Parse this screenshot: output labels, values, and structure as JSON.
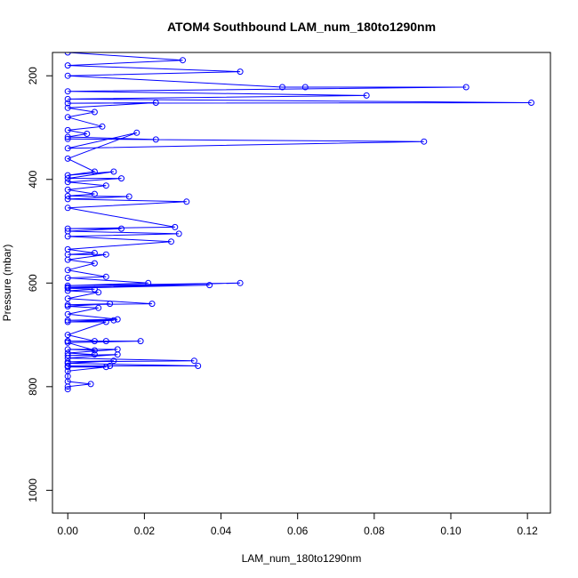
{
  "chart_data": {
    "type": "line",
    "title": "ATOM4 Southbound LAM_num_180to1290nm",
    "xlabel": "LAM_num_180to1290nm",
    "ylabel": "Pressure (mbar)",
    "xlim": [
      -0.004,
      0.126
    ],
    "ylim": [
      1044,
      155
    ],
    "y_inverted": true,
    "x_ticks": [
      0.0,
      0.02,
      0.04,
      0.06,
      0.08,
      0.1,
      0.12
    ],
    "x_tick_labels": [
      "0.00",
      "0.02",
      "0.04",
      "0.06",
      "0.08",
      "0.10",
      "0.12"
    ],
    "y_ticks": [
      200,
      400,
      600,
      800,
      1000
    ],
    "y_tick_labels": [
      "200",
      "400",
      "600",
      "800",
      "1000"
    ],
    "grid": false,
    "series_color": "#0000ff",
    "series": [
      {
        "points": [
          [
            0.0,
            155
          ],
          [
            0.03,
            170
          ],
          [
            0.0,
            180
          ],
          [
            0.045,
            192
          ],
          [
            0.0,
            200
          ],
          [
            0.056,
            222
          ],
          [
            0.062,
            222
          ],
          [
            0.104,
            222
          ],
          [
            0.0,
            230
          ],
          [
            0.078,
            238
          ],
          [
            0.0,
            245
          ],
          [
            0.121,
            252
          ],
          [
            0.0,
            253
          ],
          [
            0.023,
            252
          ],
          [
            0.0,
            262
          ],
          [
            0.007,
            270
          ],
          [
            0.0,
            280
          ],
          [
            0.009,
            298
          ],
          [
            0.0,
            305
          ],
          [
            0.005,
            312
          ],
          [
            0.0,
            318
          ],
          [
            0.023,
            323
          ],
          [
            0.0,
            322
          ],
          [
            0.093,
            327
          ],
          [
            0.0,
            340
          ],
          [
            0.018,
            310
          ],
          [
            0.0,
            360
          ],
          [
            0.007,
            385
          ],
          [
            0.0,
            392
          ],
          [
            0.012,
            385
          ],
          [
            0.0,
            398
          ],
          [
            0.014,
            398
          ],
          [
            0.0,
            405
          ],
          [
            0.01,
            412
          ],
          [
            0.0,
            420
          ],
          [
            0.007,
            428
          ],
          [
            0.0,
            432
          ],
          [
            0.016,
            433
          ],
          [
            0.0,
            438
          ],
          [
            0.031,
            443
          ],
          [
            0.0,
            455
          ],
          [
            0.028,
            492
          ],
          [
            0.0,
            495
          ],
          [
            0.014,
            495
          ],
          [
            0.0,
            500
          ],
          [
            0.029,
            505
          ],
          [
            0.0,
            510
          ],
          [
            0.027,
            520
          ],
          [
            0.0,
            535
          ],
          [
            0.007,
            542
          ],
          [
            0.0,
            545
          ],
          [
            0.01,
            545
          ],
          [
            0.0,
            555
          ],
          [
            0.007,
            562
          ],
          [
            0.0,
            575
          ],
          [
            0.01,
            588
          ],
          [
            0.0,
            590
          ],
          [
            0.021,
            600
          ],
          [
            0.0,
            605
          ],
          [
            0.045,
            600
          ],
          [
            0.0,
            608
          ],
          [
            0.037,
            604
          ],
          [
            0.0,
            610
          ],
          [
            0.007,
            612
          ],
          [
            0.0,
            615
          ],
          [
            0.008,
            618
          ],
          [
            0.0,
            630
          ],
          [
            0.022,
            640
          ],
          [
            0.0,
            642
          ],
          [
            0.011,
            640
          ],
          [
            0.0,
            645
          ],
          [
            0.008,
            648
          ],
          [
            0.0,
            660
          ],
          [
            0.013,
            670
          ],
          [
            0.0,
            672
          ],
          [
            0.012,
            672
          ],
          [
            0.0,
            675
          ],
          [
            0.01,
            675
          ],
          [
            0.0,
            700
          ],
          [
            0.007,
            712
          ],
          [
            0.0,
            712
          ],
          [
            0.01,
            712
          ],
          [
            0.0,
            712
          ],
          [
            0.019,
            712
          ],
          [
            0.0,
            715
          ],
          [
            0.007,
            730
          ],
          [
            0.0,
            728
          ],
          [
            0.013,
            728
          ],
          [
            0.0,
            735
          ],
          [
            0.007,
            738
          ],
          [
            0.0,
            740
          ],
          [
            0.013,
            738
          ],
          [
            0.0,
            745
          ],
          [
            0.033,
            750
          ],
          [
            0.0,
            752
          ],
          [
            0.012,
            750
          ],
          [
            0.0,
            755
          ],
          [
            0.034,
            760
          ],
          [
            0.0,
            760
          ],
          [
            0.011,
            760
          ],
          [
            0.0,
            762
          ],
          [
            0.01,
            762
          ],
          [
            0.0,
            770
          ],
          [
            0.0,
            780
          ],
          [
            0.0,
            790
          ],
          [
            0.006,
            795
          ],
          [
            0.0,
            800
          ],
          [
            0.0,
            805
          ]
        ]
      }
    ]
  }
}
